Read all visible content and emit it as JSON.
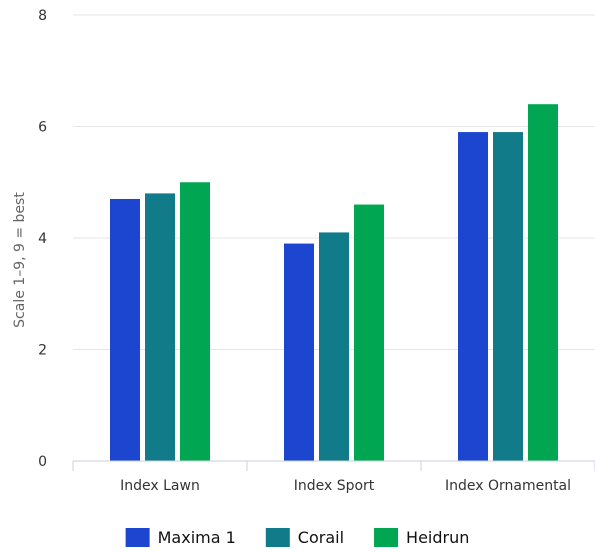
{
  "chart_data": {
    "type": "bar",
    "title": "",
    "xlabel": "",
    "ylabel": "Scale 1–9, 9 = best",
    "ylim": [
      0,
      8
    ],
    "yticks": [
      0,
      2,
      4,
      6,
      8
    ],
    "grid": true,
    "legend_position": "bottom",
    "categories": [
      "Index Lawn",
      "Index Sport",
      "Index Ornamental"
    ],
    "series": [
      {
        "name": "Maxima 1",
        "color": "#1c45d0",
        "values": [
          4.7,
          3.9,
          5.9
        ]
      },
      {
        "name": "Corail",
        "color": "#117b8a",
        "values": [
          4.8,
          4.1,
          5.9
        ]
      },
      {
        "name": "Heidrun",
        "color": "#00a651",
        "values": [
          5.0,
          4.6,
          6.4
        ]
      }
    ]
  }
}
